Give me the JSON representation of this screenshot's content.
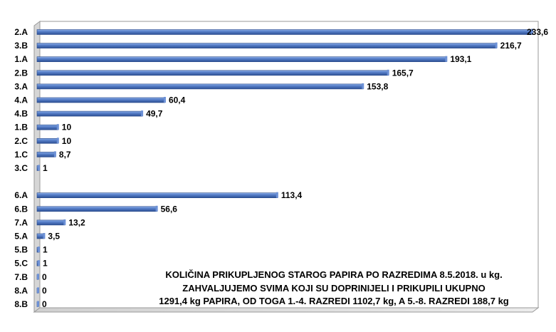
{
  "chart_data": {
    "type": "bar",
    "orientation": "horizontal",
    "categories": [
      "2.A",
      "3.B",
      "1.A",
      "2.B",
      "3.A",
      "4.A",
      "4.B",
      "1.B",
      "2.C",
      "1.C",
      "3.C",
      "",
      "6.A",
      "6.B",
      "7.A",
      "5.A",
      "5.B",
      "5.C",
      "7.B",
      "8.A",
      "8.B"
    ],
    "values": [
      233.6,
      216.7,
      193.1,
      165.7,
      153.8,
      60.4,
      49.7,
      10,
      10,
      8.7,
      1,
      null,
      113.4,
      56.6,
      13.2,
      3.5,
      1,
      1,
      0,
      0,
      0
    ],
    "value_labels": [
      "233,6",
      "216,7",
      "193,1",
      "165,7",
      "153,8",
      "60,4",
      "49,7",
      "10",
      "10",
      "8,7",
      "1",
      "",
      "113,4",
      "56,6",
      "13,2",
      "3,5",
      "1",
      "1",
      "0",
      "0",
      "0"
    ],
    "xlim": [
      0,
      233.6
    ],
    "bar_color": "#4a70b8",
    "grid": false,
    "legend": "none"
  },
  "note": {
    "line1": "KOLIČINA PRIKUPLJENOG STAROG PAPIRA PO RAZREDIMA 8.5.2018. u kg.",
    "line2": "ZAHVALJUJEMO SVIMA KOJI SU DOPRINIJELI I PRIKUPILI UKUPNO",
    "line3": "1291,4 kg PAPIRA, OD TOGA 1.-4. RAZREDI 1102,7 kg, A 5.-8. RAZREDI 188,7 kg"
  }
}
